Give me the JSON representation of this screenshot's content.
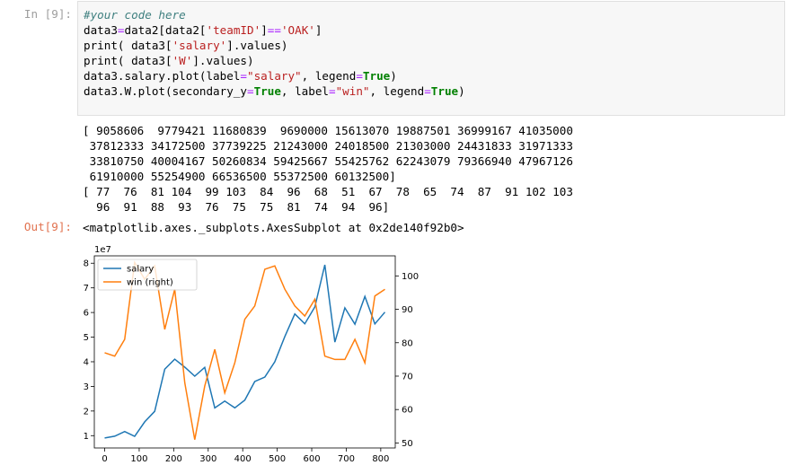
{
  "cell": {
    "in_prompt": "In [9]:",
    "out_prompt": "Out[9]:",
    "code": [
      [
        {
          "t": "#your code here",
          "c": "cm"
        }
      ],
      [
        {
          "t": "data3"
        },
        {
          "t": "=",
          "c": "op"
        },
        {
          "t": "data2[data2["
        },
        {
          "t": "'teamID'",
          "c": "str"
        },
        {
          "t": "]"
        },
        {
          "t": "==",
          "c": "op"
        },
        {
          "t": "'OAK'",
          "c": "str"
        },
        {
          "t": "]"
        }
      ],
      [
        {
          "t": "print( data3["
        },
        {
          "t": "'salary'",
          "c": "str"
        },
        {
          "t": "].values)"
        }
      ],
      [
        {
          "t": "print( data3["
        },
        {
          "t": "'W'",
          "c": "str"
        },
        {
          "t": "].values)"
        }
      ],
      [
        {
          "t": "data3.salary.plot(label"
        },
        {
          "t": "=",
          "c": "op"
        },
        {
          "t": "\"salary\"",
          "c": "str"
        },
        {
          "t": ", legend"
        },
        {
          "t": "=",
          "c": "op"
        },
        {
          "t": "True",
          "c": "kw"
        },
        {
          "t": ")"
        }
      ],
      [
        {
          "t": "data3.W.plot(secondary_y"
        },
        {
          "t": "=",
          "c": "op"
        },
        {
          "t": "True",
          "c": "kw"
        },
        {
          "t": ", label"
        },
        {
          "t": "=",
          "c": "op"
        },
        {
          "t": "\"win\"",
          "c": "str"
        },
        {
          "t": ", legend"
        },
        {
          "t": "=",
          "c": "op"
        },
        {
          "t": "True",
          "c": "kw"
        },
        {
          "t": ")"
        }
      ]
    ],
    "stdout": [
      "[ 9058606  9779421 11680839  9690000 15613070 19887501 36999167 41035000",
      " 37812333 34172500 37739225 21243000 24018500 21303000 24431833 31971333",
      " 33810750 40004167 50260834 59425667 55425762 62243079 79366940 47967126",
      " 61910000 55254900 66536500 55372500 60132500]",
      "[ 77  76  81 104  99 103  84  96  68  51  67  78  65  74  87  91 102 103",
      "  96  91  88  93  76  75  75  81  74  94  96]"
    ],
    "result": "<matplotlib.axes._subplots.AxesSubplot at 0x2de140f92b0>"
  },
  "chart_data": {
    "type": "line",
    "offset_label": "1e7",
    "x": [
      0,
      29,
      58,
      87,
      116,
      145,
      174,
      203,
      232,
      261,
      290,
      319,
      348,
      377,
      406,
      435,
      464,
      493,
      522,
      551,
      580,
      609,
      638,
      667,
      696,
      725,
      754,
      783,
      812
    ],
    "xlim": [
      -30,
      842
    ],
    "xticks": [
      0,
      100,
      200,
      300,
      400,
      500,
      600,
      700,
      800
    ],
    "ylim": [
      0.5,
      8.3
    ],
    "yticks": [
      1,
      2,
      3,
      4,
      5,
      6,
      7,
      8
    ],
    "y2lim": [
      48.5,
      106
    ],
    "y2ticks": [
      50,
      60,
      70,
      80,
      90,
      100
    ],
    "legend_loc": "upper left",
    "series": [
      {
        "name": "salary",
        "axis": "left",
        "color": "#1f77b4",
        "values": [
          0.9058606,
          0.9779421,
          1.1680839,
          0.969,
          1.561307,
          1.9887501,
          3.6999167,
          4.1035,
          3.7812333,
          3.41725,
          3.7739225,
          2.1243,
          2.40185,
          2.1303,
          2.4431833,
          3.1971333,
          3.381075,
          4.0004167,
          5.0260834,
          5.9425667,
          5.5425762,
          6.2243079,
          7.936694,
          4.7967126,
          6.191,
          5.52549,
          6.65365,
          5.53725,
          6.01325
        ]
      },
      {
        "name": "win (right)",
        "axis": "right",
        "color": "#ff7f0e",
        "values": [
          77,
          76,
          81,
          104,
          99,
          103,
          84,
          96,
          68,
          51,
          67,
          78,
          65,
          74,
          87,
          91,
          102,
          103,
          96,
          91,
          88,
          93,
          76,
          75,
          75,
          81,
          74,
          94,
          96
        ]
      }
    ]
  }
}
